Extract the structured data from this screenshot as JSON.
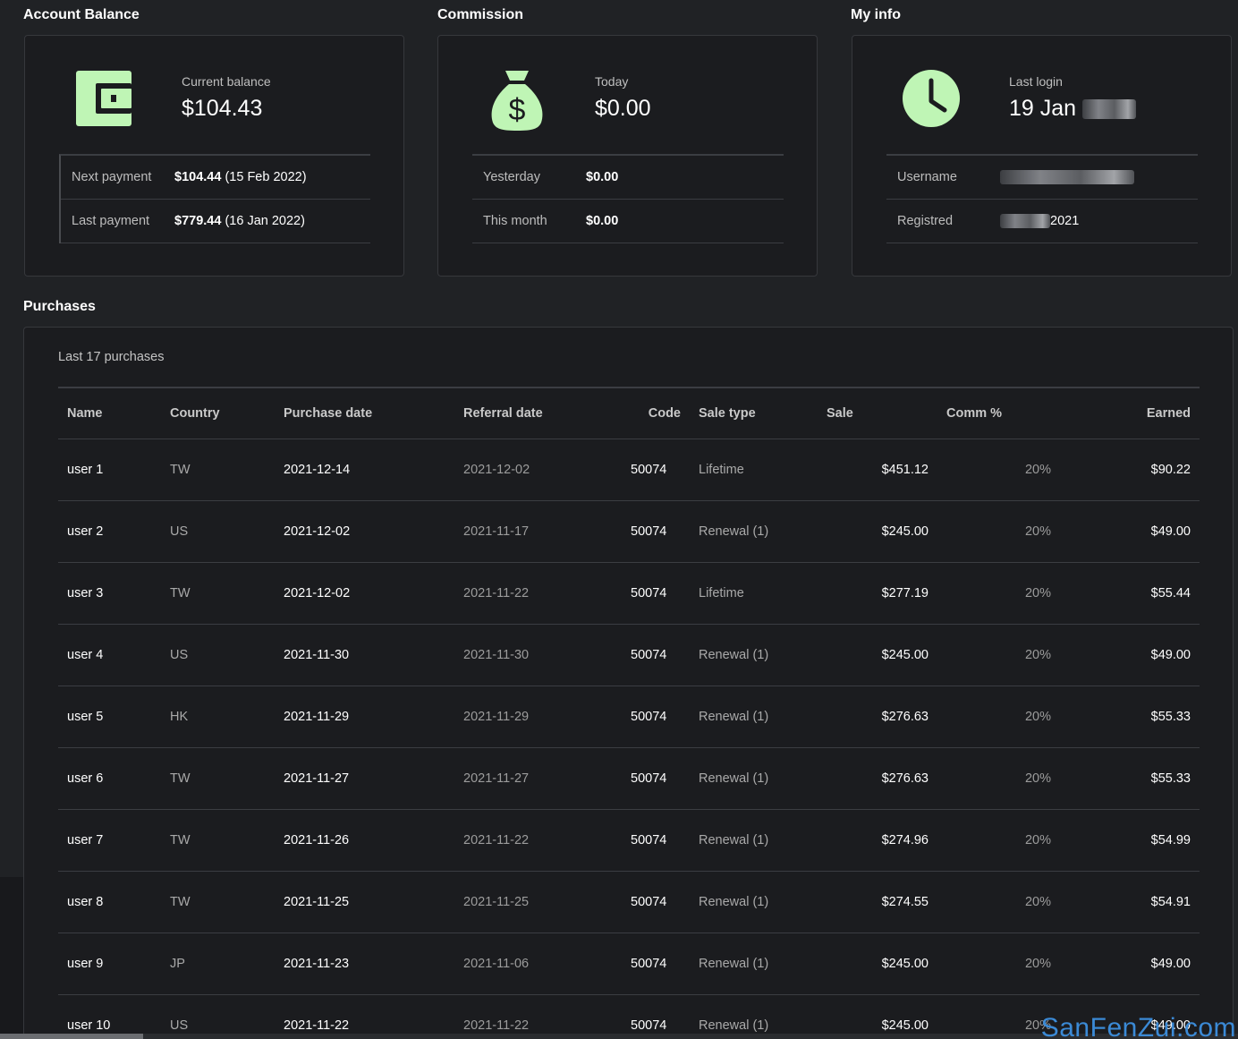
{
  "account_balance": {
    "title": "Account Balance",
    "icon": "wallet-icon",
    "current_label": "Current balance",
    "current_value": "$104.43",
    "rows": [
      {
        "label": "Next payment",
        "amount": "$104.44",
        "date": "(15 Feb 2022)"
      },
      {
        "label": "Last payment",
        "amount": "$779.44",
        "date": "(16 Jan 2022)"
      }
    ]
  },
  "commission": {
    "title": "Commission",
    "icon": "money-bag-icon",
    "today_label": "Today",
    "today_value": "$0.00",
    "rows": [
      {
        "label": "Yesterday",
        "value": "$0.00"
      },
      {
        "label": "This month",
        "value": "$0.00"
      }
    ]
  },
  "my_info": {
    "title": "My info",
    "icon": "clock-icon",
    "last_login_label": "Last login",
    "last_login_value": "19 Jan",
    "username_label": "Username",
    "registered_label": "Registred",
    "registered_value": "2021"
  },
  "purchases": {
    "title": "Purchases",
    "caption": "Last 17 purchases",
    "columns": [
      "Name",
      "Country",
      "Purchase date",
      "Referral date",
      "Code",
      "Sale type",
      "Sale",
      "Comm %",
      "Earned"
    ],
    "rows": [
      {
        "name": "user 1",
        "country": "TW",
        "purchase_date": "2021-12-14",
        "referral_date": "2021-12-02",
        "code": "50074",
        "sale_type": "Lifetime",
        "sale": "$451.12",
        "comm": "20%",
        "earned": "$90.22"
      },
      {
        "name": "user 2",
        "country": "US",
        "purchase_date": "2021-12-02",
        "referral_date": "2021-11-17",
        "code": "50074",
        "sale_type": "Renewal (1)",
        "sale": "$245.00",
        "comm": "20%",
        "earned": "$49.00"
      },
      {
        "name": "user 3",
        "country": "TW",
        "purchase_date": "2021-12-02",
        "referral_date": "2021-11-22",
        "code": "50074",
        "sale_type": "Lifetime",
        "sale": "$277.19",
        "comm": "20%",
        "earned": "$55.44"
      },
      {
        "name": "user 4",
        "country": "US",
        "purchase_date": "2021-11-30",
        "referral_date": "2021-11-30",
        "code": "50074",
        "sale_type": "Renewal (1)",
        "sale": "$245.00",
        "comm": "20%",
        "earned": "$49.00"
      },
      {
        "name": "user 5",
        "country": "HK",
        "purchase_date": "2021-11-29",
        "referral_date": "2021-11-29",
        "code": "50074",
        "sale_type": "Renewal (1)",
        "sale": "$276.63",
        "comm": "20%",
        "earned": "$55.33"
      },
      {
        "name": "user 6",
        "country": "TW",
        "purchase_date": "2021-11-27",
        "referral_date": "2021-11-27",
        "code": "50074",
        "sale_type": "Renewal (1)",
        "sale": "$276.63",
        "comm": "20%",
        "earned": "$55.33"
      },
      {
        "name": "user 7",
        "country": "TW",
        "purchase_date": "2021-11-26",
        "referral_date": "2021-11-22",
        "code": "50074",
        "sale_type": "Renewal (1)",
        "sale": "$274.96",
        "comm": "20%",
        "earned": "$54.99"
      },
      {
        "name": "user 8",
        "country": "TW",
        "purchase_date": "2021-11-25",
        "referral_date": "2021-11-25",
        "code": "50074",
        "sale_type": "Renewal (1)",
        "sale": "$274.55",
        "comm": "20%",
        "earned": "$54.91"
      },
      {
        "name": "user 9",
        "country": "JP",
        "purchase_date": "2021-11-23",
        "referral_date": "2021-11-06",
        "code": "50074",
        "sale_type": "Renewal (1)",
        "sale": "$245.00",
        "comm": "20%",
        "earned": "$49.00"
      },
      {
        "name": "user 10",
        "country": "US",
        "purchase_date": "2021-11-22",
        "referral_date": "2021-11-22",
        "code": "50074",
        "sale_type": "Renewal (1)",
        "sale": "$245.00",
        "comm": "20%",
        "earned": "$49.00"
      }
    ]
  },
  "watermark": "SanFenZui.com",
  "colors": {
    "icon_green": "#bff5b5",
    "background": "#202225",
    "card": "#1b1c1f",
    "watermark": "#3b8ad6"
  }
}
